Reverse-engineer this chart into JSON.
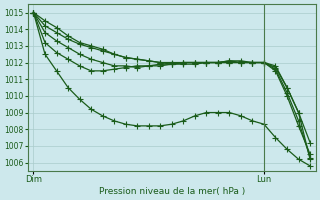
{
  "xlabel": "Pression niveau de la mer( hPa )",
  "background_color": "#cde8ec",
  "grid_color": "#aacccc",
  "line_color": "#1a5c1a",
  "text_color": "#1a5c1a",
  "spine_color": "#4a7a4a",
  "ylim": [
    1005.5,
    1015.5
  ],
  "yticks": [
    1006,
    1007,
    1008,
    1009,
    1010,
    1011,
    1012,
    1013,
    1014,
    1015
  ],
  "xtick_labels": [
    "Dim",
    "Lun"
  ],
  "xtick_positions": [
    0,
    20
  ],
  "num_points": 25,
  "vline_x": 20,
  "series": [
    [
      1015.0,
      1014.5,
      1014.1,
      1013.6,
      1013.2,
      1013.0,
      1012.8,
      1012.5,
      1012.3,
      1012.2,
      1012.1,
      1012.0,
      1012.0,
      1012.0,
      1012.0,
      1012.0,
      1012.0,
      1012.1,
      1012.1,
      1012.0,
      1012.0,
      1011.8,
      1010.5,
      1009.0,
      1007.2
    ],
    [
      1015.0,
      1014.2,
      1013.8,
      1013.4,
      1013.1,
      1012.9,
      1012.7,
      1012.5,
      1012.3,
      1012.2,
      1012.1,
      1012.0,
      1011.9,
      1011.9,
      1011.9,
      1012.0,
      1012.0,
      1012.0,
      1012.0,
      1012.0,
      1012.0,
      1011.5,
      1010.0,
      1008.2,
      1006.5
    ],
    [
      1015.0,
      1013.8,
      1013.3,
      1012.9,
      1012.5,
      1012.2,
      1012.0,
      1011.8,
      1011.8,
      1011.7,
      1011.8,
      1011.8,
      1011.9,
      1012.0,
      1012.0,
      1012.0,
      1012.0,
      1012.1,
      1012.0,
      1012.0,
      1012.0,
      1011.7,
      1010.5,
      1009.0,
      1006.2
    ],
    [
      1015.0,
      1013.2,
      1012.6,
      1012.2,
      1011.8,
      1011.5,
      1011.5,
      1011.6,
      1011.7,
      1011.8,
      1011.8,
      1011.9,
      1011.9,
      1012.0,
      1012.0,
      1012.0,
      1012.0,
      1012.0,
      1012.0,
      1012.0,
      1012.0,
      1011.6,
      1010.2,
      1008.5,
      1006.3
    ],
    [
      1015.0,
      1012.5,
      1011.5,
      1010.5,
      1009.8,
      1009.2,
      1008.8,
      1008.5,
      1008.3,
      1008.2,
      1008.2,
      1008.2,
      1008.3,
      1008.5,
      1008.8,
      1009.0,
      1009.0,
      1009.0,
      1008.8,
      1008.5,
      1008.3,
      1007.5,
      1006.8,
      1006.2,
      1005.8
    ]
  ],
  "marker": "+",
  "markersize": 4,
  "linewidth": 0.9
}
